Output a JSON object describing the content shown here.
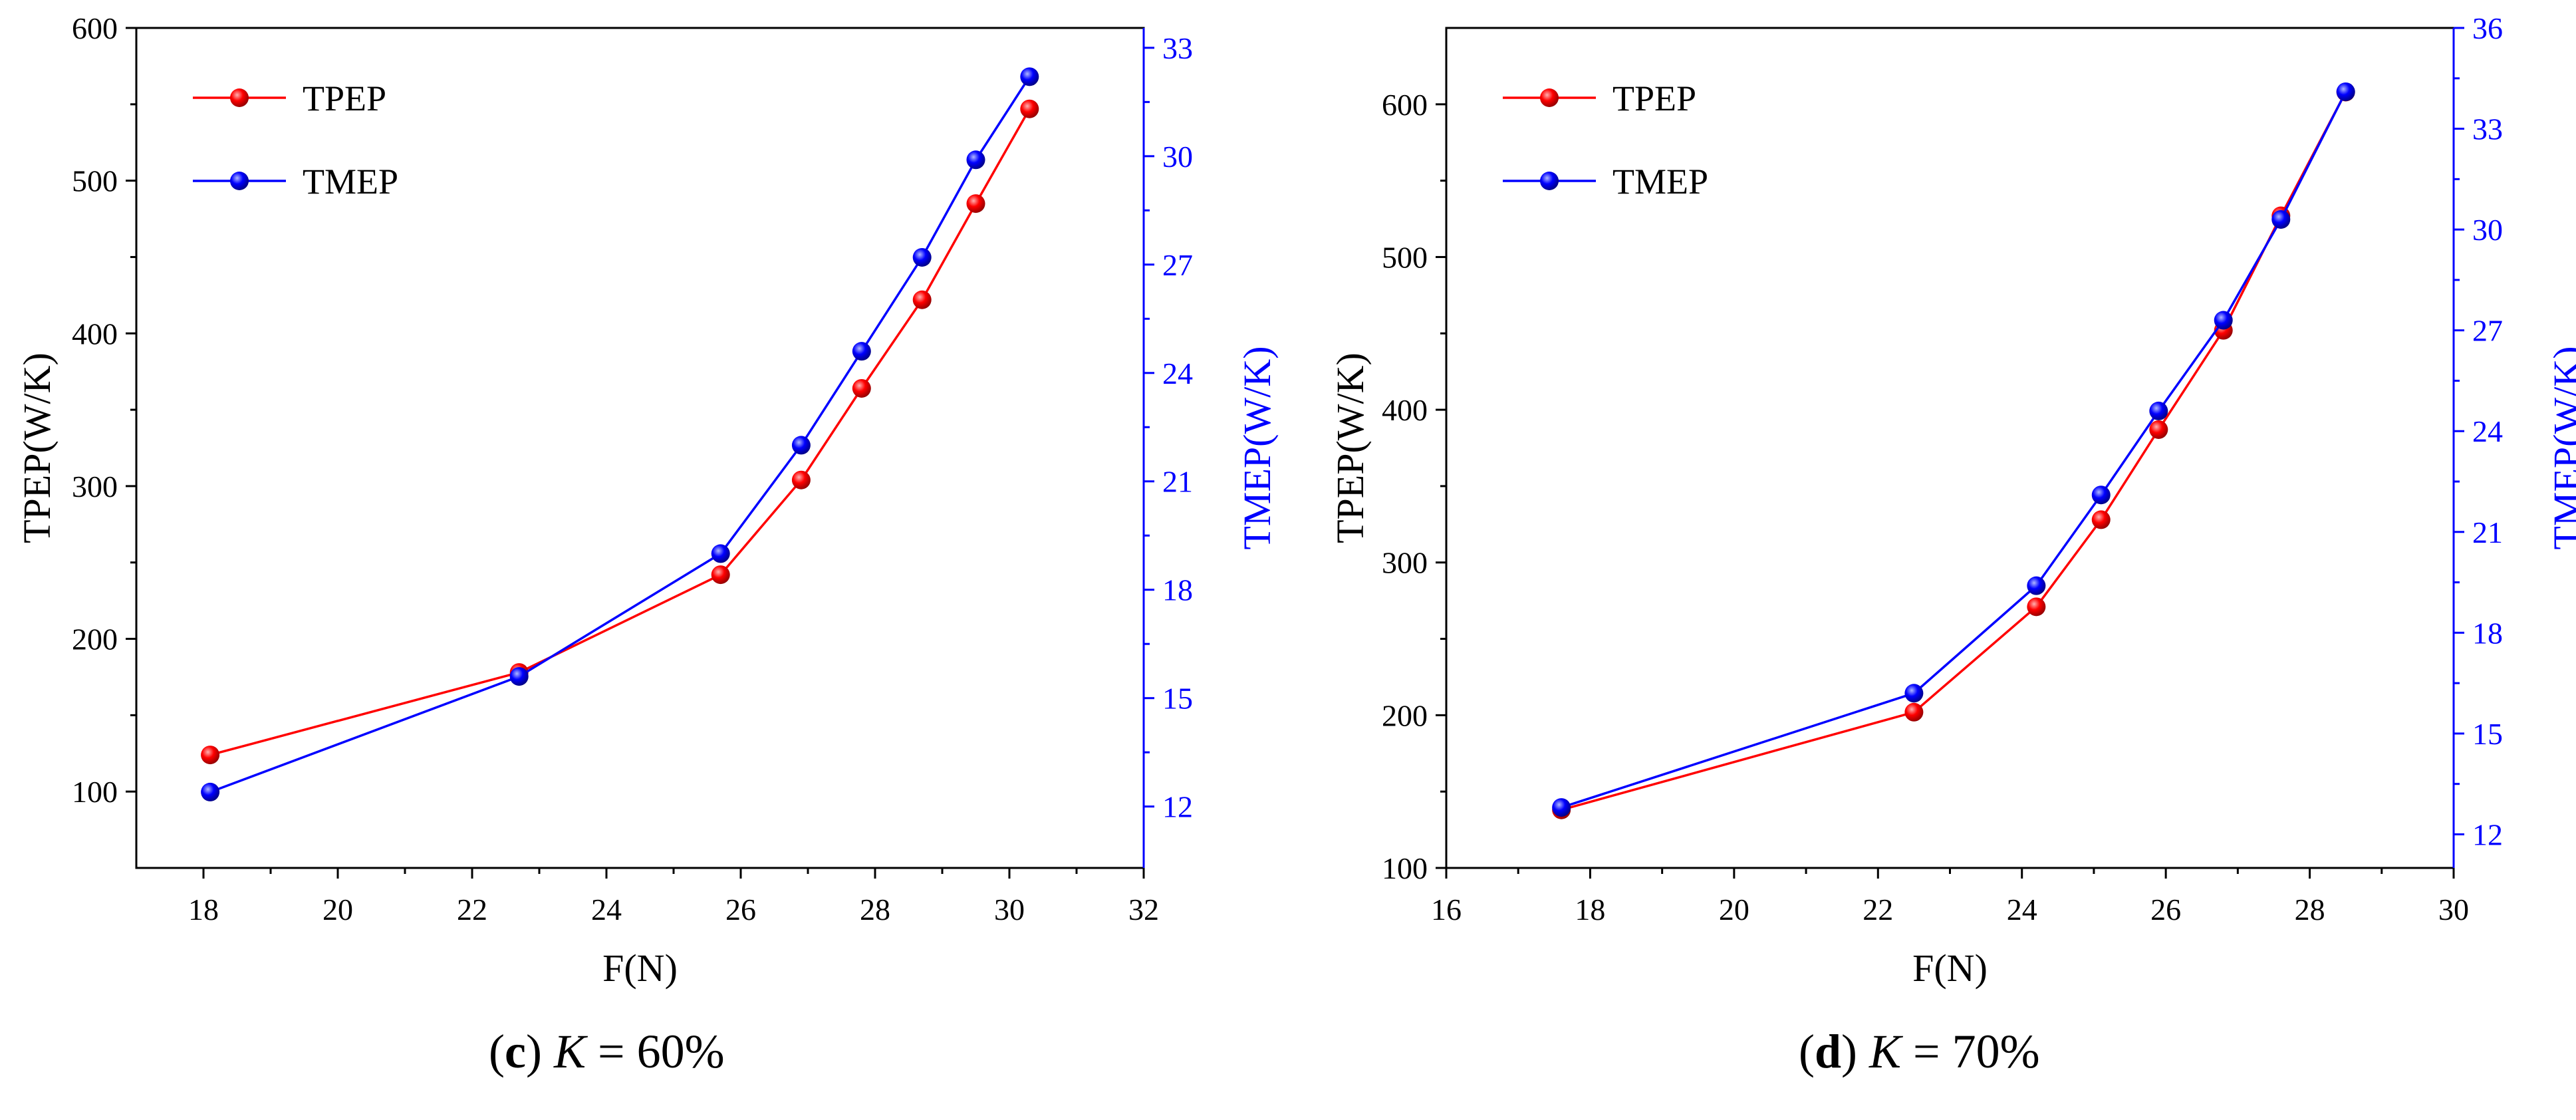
{
  "chart_data": [
    {
      "type": "line",
      "panel": "c",
      "caption": {
        "letter": "c",
        "var": "K",
        "text": " = 60%"
      },
      "xlabel": "F(N)",
      "ylabel": "TPEP(W/K)",
      "y2label": "TMEP(W/K)",
      "xlim": [
        17,
        32
      ],
      "xticks": [
        18,
        20,
        22,
        24,
        26,
        28,
        30,
        32
      ],
      "ylim": [
        50,
        600
      ],
      "yticks": [
        100,
        200,
        300,
        400,
        500,
        600
      ],
      "y2lim": [
        10.3,
        33.55
      ],
      "y2ticks": [
        12,
        15,
        18,
        21,
        24,
        27,
        30,
        33
      ],
      "legend": "top-left",
      "series": [
        {
          "name": "TPEP",
          "axis": "left",
          "color": "#ff0000",
          "x": [
            18.1,
            22.7,
            25.7,
            26.9,
            27.8,
            28.7,
            29.5,
            30.3
          ],
          "y": [
            124,
            178,
            242,
            304,
            364,
            422,
            485,
            547
          ]
        },
        {
          "name": "TMEP",
          "axis": "right",
          "color": "#0000ff",
          "x": [
            18.1,
            22.7,
            25.7,
            26.9,
            27.8,
            28.7,
            29.5,
            30.3
          ],
          "y": [
            12.4,
            15.6,
            19.0,
            22.0,
            24.6,
            27.2,
            29.9,
            32.2
          ]
        }
      ]
    },
    {
      "type": "line",
      "panel": "d",
      "caption": {
        "letter": "d",
        "var": "K",
        "text": " = 70%"
      },
      "xlabel": "F(N)",
      "ylabel": "TPEP(W/K)",
      "y2label": "TMEP(W/K)",
      "xlim": [
        16,
        30
      ],
      "xticks": [
        16,
        18,
        20,
        22,
        24,
        26,
        28,
        30
      ],
      "ylim": [
        100,
        650
      ],
      "yticks": [
        100,
        200,
        300,
        400,
        500,
        600
      ],
      "y2lim": [
        11,
        36
      ],
      "y2ticks": [
        12,
        15,
        18,
        21,
        24,
        27,
        30,
        33,
        36
      ],
      "legend": "top-left",
      "series": [
        {
          "name": "TPEP",
          "axis": "left",
          "color": "#ff0000",
          "x": [
            17.6,
            22.5,
            24.2,
            25.1,
            25.9,
            26.8,
            27.6,
            28.5
          ],
          "y": [
            138,
            202,
            271,
            328,
            387,
            452,
            527,
            608
          ]
        },
        {
          "name": "TMEP",
          "axis": "right",
          "color": "#0000ff",
          "x": [
            17.6,
            22.5,
            24.2,
            25.1,
            25.9,
            26.8,
            27.6,
            28.5
          ],
          "y": [
            12.8,
            16.2,
            19.4,
            22.1,
            24.6,
            27.3,
            30.3,
            34.1
          ]
        }
      ]
    }
  ]
}
